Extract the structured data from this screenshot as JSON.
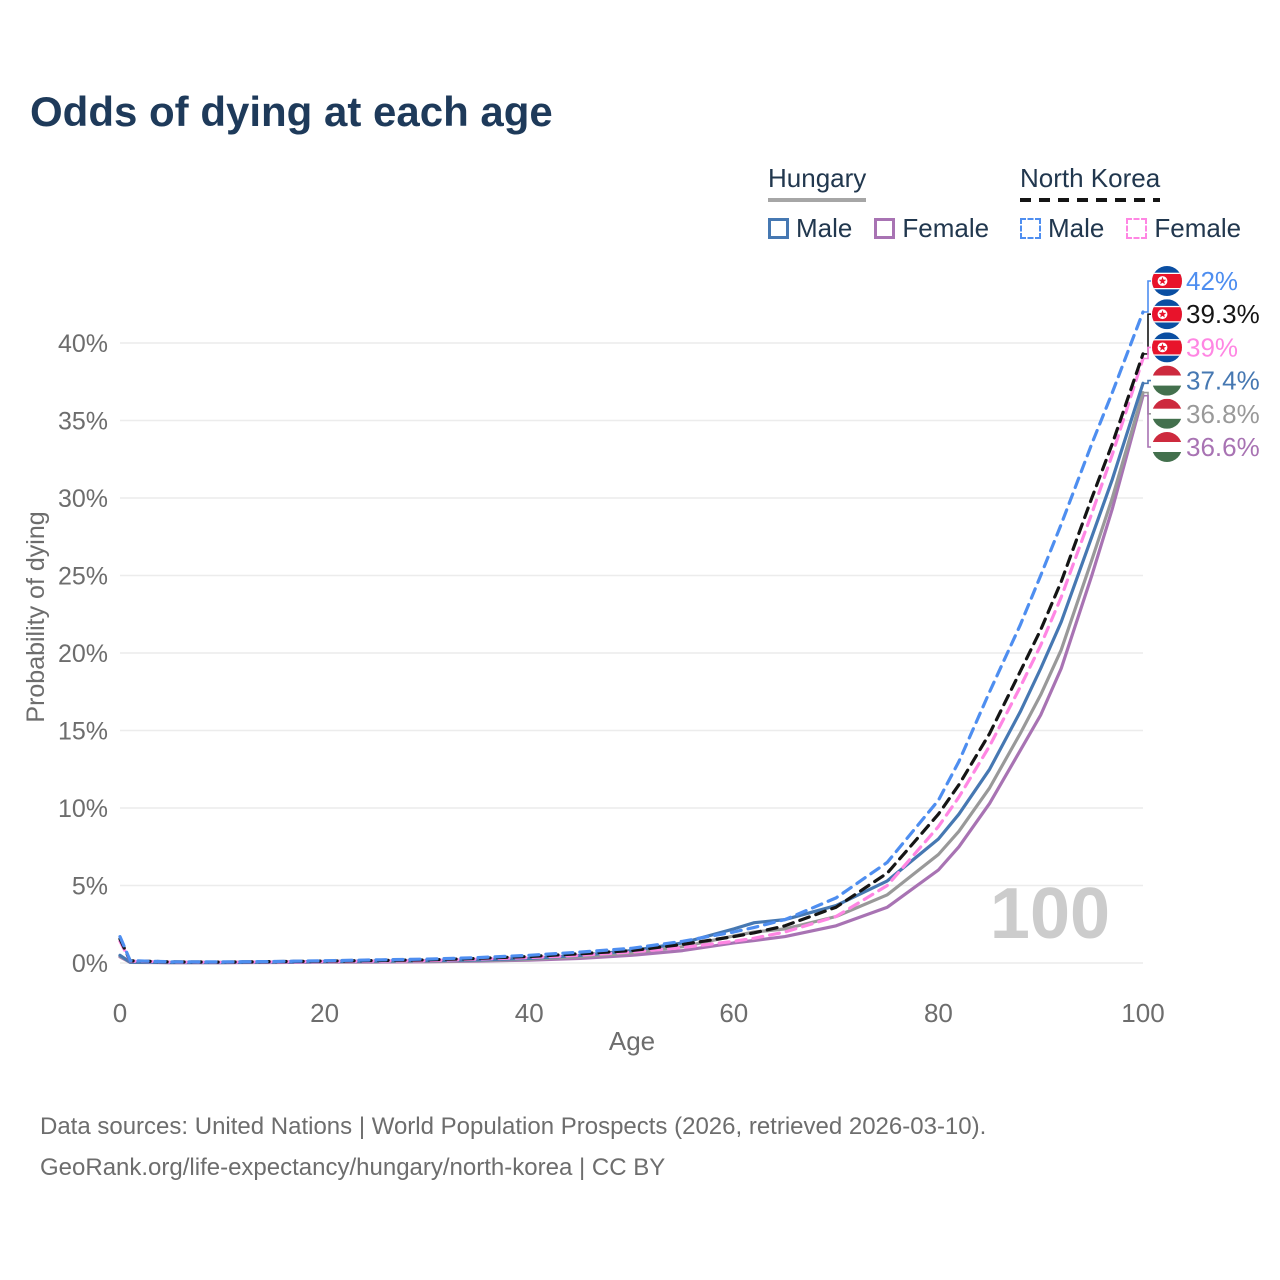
{
  "title": "Odds of dying at each age",
  "watermark": "100",
  "legend": {
    "groups": [
      {
        "label": "Hungary",
        "line_style": "solid",
        "underline_color": "#a6a6a6",
        "items": [
          {
            "label": "Male",
            "color": "#4678b2"
          },
          {
            "label": "Female",
            "color": "#a873b3"
          }
        ]
      },
      {
        "label": "North Korea",
        "line_style": "dashed",
        "underline_color": "#151515",
        "items": [
          {
            "label": "Male",
            "color": "#4e8ef0"
          },
          {
            "label": "Female",
            "color": "#ff86e3"
          }
        ]
      }
    ]
  },
  "footer": {
    "line1": "Data sources: United Nations | World Population Prospects (2026, retrieved 2026-03-10).",
    "line2": "GeoRank.org/life-expectancy/hungary/north-korea | CC BY"
  },
  "chart_data": {
    "type": "line",
    "title": "Odds of dying at each age",
    "xlabel": "Age",
    "ylabel": "Probability of dying",
    "xlim": [
      0,
      100
    ],
    "ylim_percent": [
      0,
      44
    ],
    "xticks": [
      0,
      20,
      40,
      60,
      80,
      100
    ],
    "ytick_values_percent": [
      0,
      5,
      10,
      15,
      20,
      25,
      30,
      35,
      40
    ],
    "grid": true,
    "legend_position": "top-right",
    "age_watermark": "100",
    "x": [
      0,
      1,
      5,
      10,
      15,
      20,
      25,
      30,
      35,
      40,
      45,
      50,
      55,
      60,
      62,
      65,
      70,
      75,
      80,
      82,
      85,
      88,
      90,
      92,
      95,
      97,
      100
    ],
    "series": [
      {
        "id": "north-korea-male",
        "name": "North Korea Male",
        "country": "north-korea",
        "color": "#4e8ef0",
        "label_color": "#4e8ef0",
        "dashed": true,
        "end_label": "42%",
        "values": [
          1.7,
          0.15,
          0.08,
          0.07,
          0.1,
          0.15,
          0.2,
          0.25,
          0.35,
          0.5,
          0.7,
          0.95,
          1.4,
          2.0,
          2.3,
          2.8,
          4.2,
          6.5,
          10.5,
          13.0,
          17.5,
          21.8,
          25.0,
          28.3,
          33.5,
          36.8,
          42.0
        ]
      },
      {
        "id": "north-korea-all",
        "name": "North Korea (both sexes)",
        "country": "north-korea",
        "color": "#151515",
        "label_color": "#151515",
        "dashed": true,
        "end_label": "39.3%",
        "values": [
          1.55,
          0.14,
          0.07,
          0.06,
          0.09,
          0.12,
          0.16,
          0.2,
          0.3,
          0.42,
          0.6,
          0.8,
          1.2,
          1.7,
          1.95,
          2.4,
          3.6,
          5.8,
          9.6,
          11.5,
          14.8,
          18.8,
          21.5,
          24.6,
          30.0,
          33.5,
          39.3
        ]
      },
      {
        "id": "north-korea-female",
        "name": "North Korea Female",
        "country": "north-korea",
        "color": "#ff86e3",
        "label_color": "#ff86e3",
        "dashed": true,
        "end_label": "39%",
        "values": [
          1.4,
          0.12,
          0.06,
          0.05,
          0.07,
          0.1,
          0.12,
          0.15,
          0.25,
          0.35,
          0.5,
          0.7,
          1.0,
          1.4,
          1.6,
          2.0,
          3.0,
          5.0,
          8.8,
          10.7,
          14.0,
          17.8,
          20.5,
          23.6,
          29.0,
          32.8,
          39.0
        ]
      },
      {
        "id": "hungary-male",
        "name": "Hungary Male",
        "country": "hungary",
        "color": "#4678b2",
        "label_color": "#4678b2",
        "dashed": false,
        "end_label": "37.4%",
        "values": [
          0.5,
          0.05,
          0.03,
          0.03,
          0.06,
          0.1,
          0.12,
          0.15,
          0.2,
          0.3,
          0.5,
          0.8,
          1.3,
          2.2,
          2.6,
          2.8,
          3.7,
          5.3,
          8.0,
          9.6,
          12.5,
          16.2,
          19.0,
          22.0,
          27.5,
          31.2,
          37.4
        ]
      },
      {
        "id": "hungary-all",
        "name": "Hungary (both sexes)",
        "country": "hungary",
        "color": "#999999",
        "label_color": "#999999",
        "dashed": false,
        "end_label": "36.8%",
        "values": [
          0.45,
          0.05,
          0.03,
          0.03,
          0.05,
          0.08,
          0.09,
          0.11,
          0.16,
          0.24,
          0.4,
          0.65,
          1.05,
          1.75,
          2.0,
          2.2,
          3.0,
          4.4,
          7.0,
          8.5,
          11.3,
          14.8,
          17.3,
          20.2,
          26.0,
          30.0,
          36.8
        ]
      },
      {
        "id": "hungary-female",
        "name": "Hungary Female",
        "country": "hungary",
        "color": "#a873b3",
        "label_color": "#a873b3",
        "dashed": false,
        "end_label": "36.6%",
        "values": [
          0.4,
          0.04,
          0.02,
          0.02,
          0.03,
          0.05,
          0.06,
          0.08,
          0.12,
          0.18,
          0.3,
          0.5,
          0.8,
          1.3,
          1.45,
          1.7,
          2.4,
          3.6,
          6.0,
          7.5,
          10.3,
          13.7,
          16.0,
          19.0,
          25.0,
          29.3,
          36.6
        ]
      }
    ]
  }
}
